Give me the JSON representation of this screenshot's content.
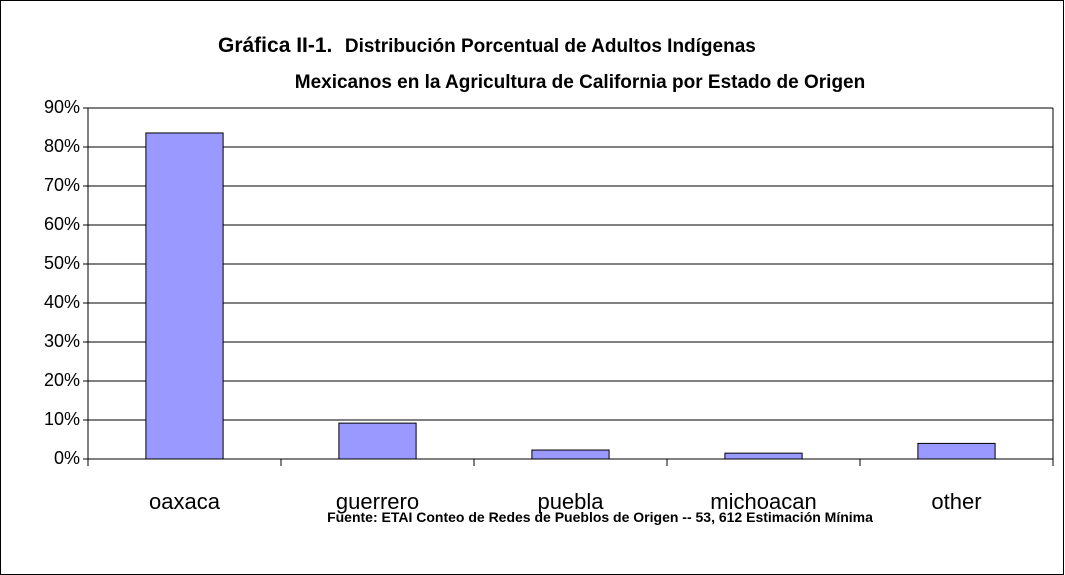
{
  "chart_data": {
    "type": "bar",
    "title": [
      "Gráfica II-1.",
      "Distribución Porcentual de Adultos Indígenas",
      "Mexicanos en la Agricultura de California por Estado de Origen"
    ],
    "categories": [
      "oaxaca",
      "guerrero",
      "puebla",
      "michoacan",
      "other"
    ],
    "values": [
      83.6,
      9.2,
      2.3,
      1.5,
      4.0
    ],
    "color": "#9999ff",
    "ylim": [
      0,
      90
    ],
    "yticks": [
      {
        "value": 0,
        "label": "0%"
      },
      {
        "value": 10,
        "label": "10%"
      },
      {
        "value": 20,
        "label": "20%"
      },
      {
        "value": 30,
        "label": "30%"
      },
      {
        "value": 40,
        "label": "40%"
      },
      {
        "value": 50,
        "label": "50%"
      },
      {
        "value": 60,
        "label": "60%"
      },
      {
        "value": 70,
        "label": "70%"
      },
      {
        "value": 80,
        "label": "80%"
      },
      {
        "value": 90,
        "label": "90%"
      }
    ],
    "grid": true,
    "source": "Fuente: ETAI Conteo de Redes  de Pueblos de Origen -- 53, 612 Estimación Mínima"
  }
}
